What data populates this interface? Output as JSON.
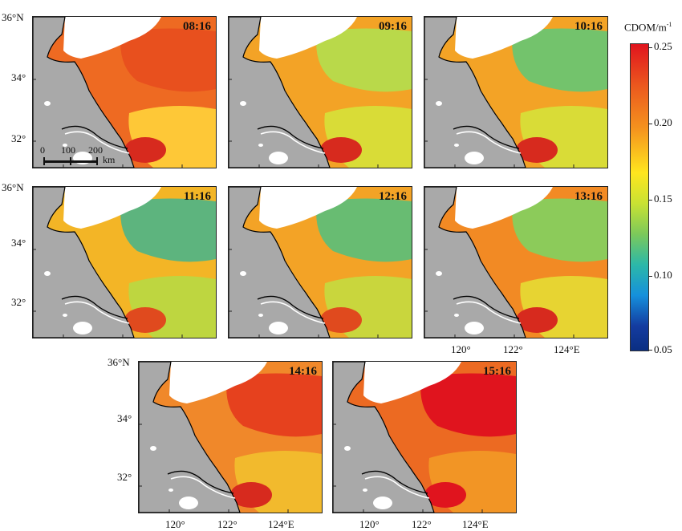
{
  "panels": [
    {
      "time": "08:16",
      "ocean": "#ee6a22",
      "north": "#e8501e",
      "south": "#ffd33a",
      "patch": "#d72a1e"
    },
    {
      "time": "09:16",
      "ocean": "#f3a326",
      "north": "#b9d94a",
      "south": "#d6e23a",
      "patch": "#d72a1e"
    },
    {
      "time": "10:16",
      "ocean": "#f3a326",
      "north": "#73c36c",
      "south": "#d6e23a",
      "patch": "#d72a1e"
    },
    {
      "time": "11:16",
      "ocean": "#f3b526",
      "north": "#5db47e",
      "south": "#b8d944",
      "patch": "#e04a1e"
    },
    {
      "time": "12:16",
      "ocean": "#f3a326",
      "north": "#68bc72",
      "south": "#c4dc40",
      "patch": "#e04a1e"
    },
    {
      "time": "13:16",
      "ocean": "#f28a24",
      "north": "#8ccb5a",
      "south": "#e6dc34",
      "patch": "#d72a1e"
    },
    {
      "time": "14:16",
      "ocean": "#f0882a",
      "north": "#e6411e",
      "south": "#f2c02e",
      "patch": "#d72a1e"
    },
    {
      "time": "15:16",
      "ocean": "#ec6a22",
      "north": "#e0141e",
      "south": "#f39a26",
      "patch": "#e0141e"
    }
  ],
  "axes": {
    "lat_labels": [
      "36°N",
      "34°",
      "32°"
    ],
    "lon_labels": [
      "120°",
      "122°",
      "124°E"
    ]
  },
  "scale_bar": {
    "t0": "0",
    "t1": "100",
    "t2": "200",
    "unit": "km"
  },
  "colorbar": {
    "title": "CDOM/m",
    "title_exp": "-1",
    "ticks": [
      "0.25",
      "0.20",
      "0.15",
      "0.10",
      "0.05"
    ]
  },
  "colors": {
    "land": "#a9a9a9",
    "coast": "#000000",
    "cloud": "#ffffff"
  }
}
